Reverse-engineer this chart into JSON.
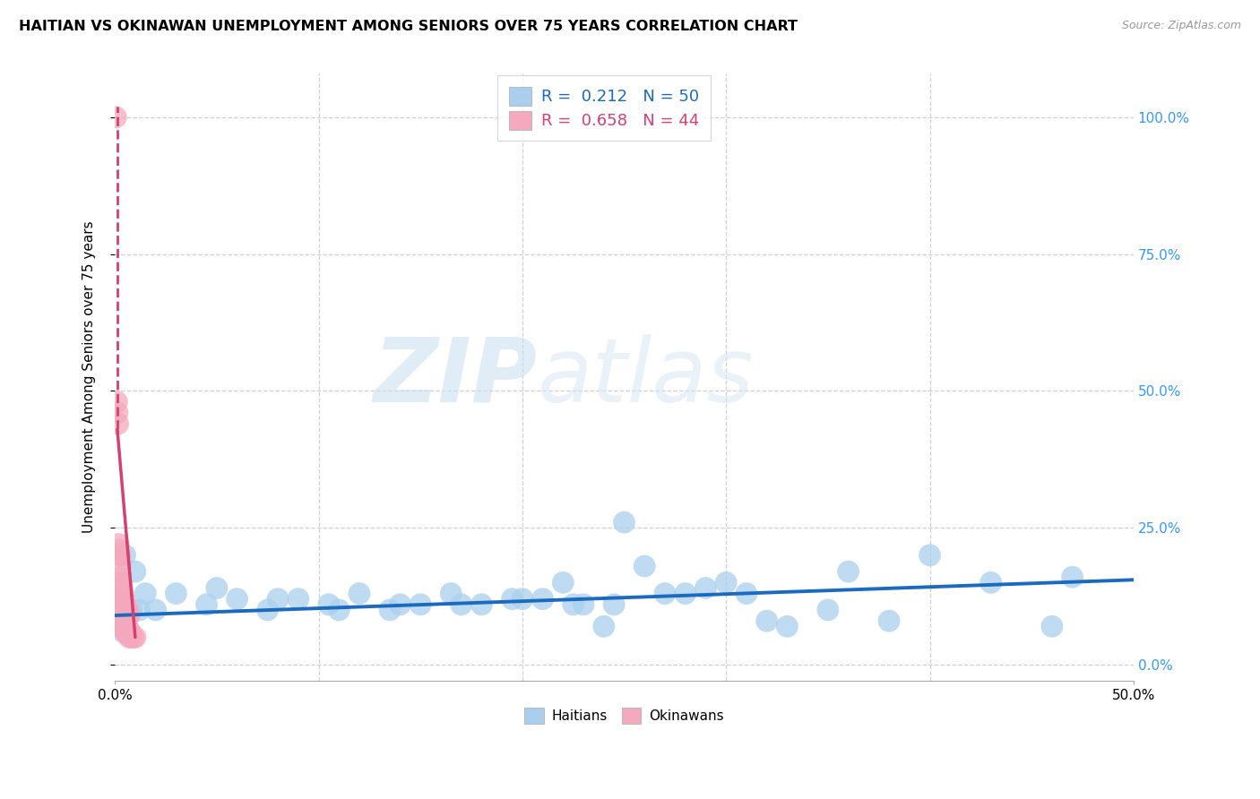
{
  "title": "HAITIAN VS OKINAWAN UNEMPLOYMENT AMONG SENIORS OVER 75 YEARS CORRELATION CHART",
  "source": "Source: ZipAtlas.com",
  "ylabel": "Unemployment Among Seniors over 75 years",
  "ytick_labels": [
    "0.0%",
    "25.0%",
    "50.0%",
    "75.0%",
    "100.0%"
  ],
  "ytick_values": [
    0,
    25,
    50,
    75,
    100
  ],
  "xtick_labels": [
    "0.0%",
    "50.0%"
  ],
  "xtick_positions": [
    0,
    50
  ],
  "xlim": [
    0,
    50
  ],
  "ylim": [
    -3,
    108
  ],
  "legend_line1": "R =  0.212   N = 50",
  "legend_line2": "R =  0.658   N = 44",
  "label_haitians": "Haitians",
  "label_okinawans": "Okinawans",
  "blue_color": "#aacfee",
  "pink_color": "#f5a8be",
  "blue_line_color": "#1a6bbf",
  "pink_line_color": "#d44070",
  "watermark_zip": "ZIP",
  "watermark_atlas": "atlas",
  "blue_dots_x": [
    0.5,
    1.0,
    0.2,
    0.8,
    1.5,
    0.3,
    2.0,
    1.2,
    0.6,
    0.4,
    3.0,
    4.5,
    6.0,
    7.5,
    9.0,
    10.5,
    12.0,
    13.5,
    15.0,
    16.5,
    18.0,
    19.5,
    21.0,
    22.5,
    24.0,
    5.0,
    8.0,
    11.0,
    14.0,
    17.0,
    20.0,
    23.0,
    26.0,
    29.0,
    32.0,
    22.0,
    24.5,
    27.0,
    30.0,
    33.0,
    36.0,
    38.0,
    40.0,
    43.0,
    46.0,
    25.0,
    35.0,
    28.0,
    31.0,
    47.0
  ],
  "blue_dots_y": [
    20,
    17,
    12,
    10,
    13,
    8,
    10,
    10,
    7,
    6,
    13,
    11,
    12,
    10,
    12,
    11,
    13,
    10,
    11,
    13,
    11,
    12,
    12,
    11,
    7,
    14,
    12,
    10,
    11,
    11,
    12,
    11,
    18,
    14,
    8,
    15,
    11,
    13,
    15,
    7,
    17,
    8,
    20,
    15,
    7,
    26,
    10,
    13,
    13,
    16
  ],
  "pink_dots_x": [
    0.05,
    0.1,
    0.12,
    0.15,
    0.18,
    0.2,
    0.22,
    0.25,
    0.28,
    0.3,
    0.32,
    0.35,
    0.38,
    0.4,
    0.42,
    0.45,
    0.48,
    0.5,
    0.52,
    0.55,
    0.58,
    0.6,
    0.65,
    0.7,
    0.08,
    0.15,
    0.22,
    0.3,
    0.38,
    0.45,
    0.52,
    0.6,
    0.68,
    0.75,
    0.1,
    0.2,
    0.3,
    0.4,
    0.5,
    0.6,
    0.7,
    0.8,
    0.9,
    1.0
  ],
  "pink_dots_y": [
    100,
    48,
    46,
    44,
    22,
    21,
    20,
    20,
    18,
    16,
    15,
    14,
    13,
    13,
    12,
    12,
    11,
    11,
    11,
    10,
    10,
    10,
    9,
    9,
    9,
    9,
    8,
    8,
    8,
    7,
    7,
    7,
    6,
    6,
    8,
    8,
    7,
    7,
    6,
    6,
    5,
    5,
    5,
    5
  ],
  "blue_trend_x0": 0,
  "blue_trend_y0": 9.0,
  "blue_trend_x1": 50,
  "blue_trend_y1": 15.5,
  "pink_solid_x0": 0.12,
  "pink_solid_y0": 43,
  "pink_solid_x1": 1.0,
  "pink_solid_y1": 5,
  "pink_dash_x": 0.12,
  "pink_dash_y0": 43,
  "pink_dash_y1": 102
}
